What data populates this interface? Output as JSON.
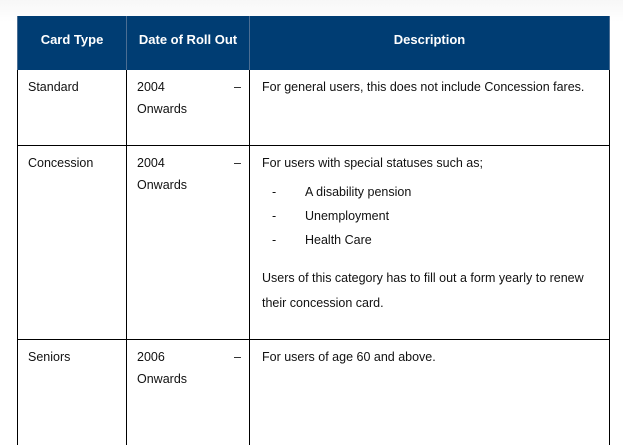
{
  "table": {
    "headers": [
      "Card Type",
      "Date of Roll Out",
      "Description"
    ],
    "rows": [
      {
        "card_type": "Standard",
        "date_year": "2004",
        "date_dash": "–",
        "date_suffix": "Onwards",
        "description": "For general users, this does not include Concession fares."
      },
      {
        "card_type": "Concession",
        "date_year": "2004",
        "date_dash": "–",
        "date_suffix": "Onwards",
        "description": "For users with special statuses such as;",
        "bullet_marker": "-",
        "bullets": [
          "A disability pension",
          "Unemployment",
          "Health Care"
        ],
        "description_extra": "Users of this category has to fill out a form yearly to renew their concession card."
      },
      {
        "card_type": "Seniors",
        "date_year": "2006",
        "date_dash": "–",
        "date_suffix": "Onwards",
        "description": "For users of age 60 and above."
      }
    ]
  },
  "colors": {
    "header_background": "#003d73",
    "header_text": "#ffffff",
    "body_text": "#111111"
  }
}
